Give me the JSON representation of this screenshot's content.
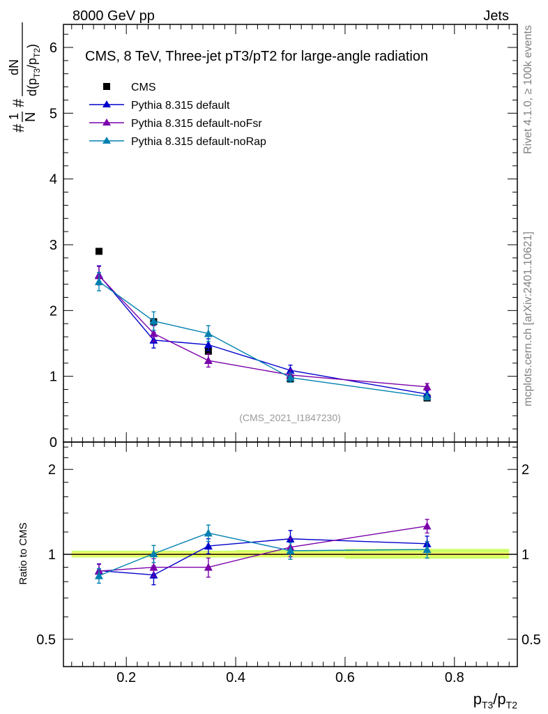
{
  "header": {
    "left": "8000 GeV pp",
    "right": "Jets",
    "side_top": "Rivet 4.1.0, ≥ 100k events",
    "side_bottom": "mcplots.cern.ch [arXiv:2401.10621]"
  },
  "chart_data": {
    "type": "line",
    "title": "CMS, 8 TeV, Three-jet pT3/pT2 for large-angle radiation",
    "watermark": "(CMS_2021_I1847230)",
    "xlabel": {
      "base": "p",
      "sub1": "T3",
      "slash": "/p",
      "sub2": "T2"
    },
    "ylabel": {
      "prefix": "#",
      "frac1_num": "1",
      "frac1_den": "N",
      "mid": "#",
      "frac2_num": "dN",
      "frac2_den": "d(p",
      "sub1": "T3",
      "slash": "/p",
      "sub2": "T2",
      "close": ")"
    },
    "ratio_ylabel": "Ratio to CMS",
    "xlim": [
      0.085,
      0.915
    ],
    "ylim": [
      0,
      6.35
    ],
    "ratio_ylim": [
      0.4,
      2.5
    ],
    "x_ticks": [
      "0.2",
      "0.4",
      "0.6",
      "0.8"
    ],
    "y_ticks": [
      "0",
      "1",
      "2",
      "3",
      "4",
      "5",
      "6"
    ],
    "ratio_ticks": [
      "0.5",
      "1",
      "2"
    ],
    "x": [
      0.15,
      0.25,
      0.35,
      0.5,
      0.75
    ],
    "bin_edges": [
      0.1,
      0.2,
      0.3,
      0.4,
      0.6,
      0.9
    ],
    "data": {
      "name": "CMS",
      "color": "#000000",
      "values": [
        2.9,
        1.83,
        1.38,
        0.96,
        0.67
      ]
    },
    "series": [
      {
        "name": "Pythia 8.315 default",
        "color": "#0000cc",
        "values": [
          2.54,
          1.55,
          1.48,
          1.09,
          0.73
        ],
        "errors": [
          0.14,
          0.12,
          0.09,
          0.08,
          0.05
        ],
        "ratio": [
          0.875,
          0.845,
          1.07,
          1.135,
          1.09
        ],
        "ratio_err": [
          0.05,
          0.065,
          0.065,
          0.08,
          0.07
        ]
      },
      {
        "name": "Pythia 8.315 default-noFsr",
        "color": "#7a00aa",
        "values": [
          2.53,
          1.65,
          1.24,
          1.02,
          0.84
        ],
        "errors": [
          0.14,
          0.12,
          0.1,
          0.08,
          0.05
        ],
        "ratio": [
          0.872,
          0.9,
          0.9,
          1.06,
          1.26
        ],
        "ratio_err": [
          0.05,
          0.065,
          0.07,
          0.08,
          0.07
        ]
      },
      {
        "name": "Pythia 8.315 default-noRap",
        "color": "#0080b0",
        "values": [
          2.44,
          1.84,
          1.65,
          0.98,
          0.69
        ],
        "errors": [
          0.14,
          0.14,
          0.12,
          0.07,
          0.05
        ],
        "ratio": [
          0.84,
          1.005,
          1.19,
          1.03,
          1.04
        ],
        "ratio_err": [
          0.05,
          0.07,
          0.08,
          0.07,
          0.07
        ]
      }
    ],
    "ratio_band": {
      "color": "#ccff66",
      "inner_color": "#ffff66",
      "lower": [
        0.975,
        0.975,
        0.975,
        0.975,
        0.965
      ],
      "upper": [
        1.03,
        1.03,
        1.03,
        1.035,
        1.045
      ]
    }
  }
}
